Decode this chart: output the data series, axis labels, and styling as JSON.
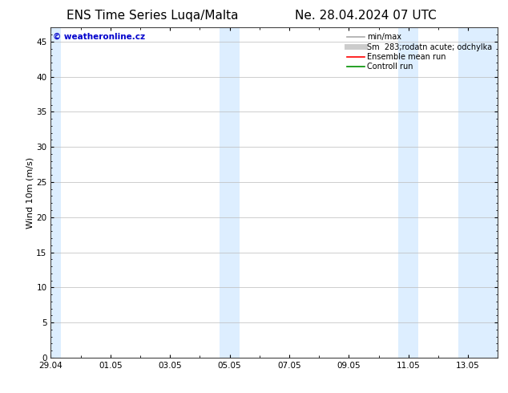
{
  "title_left": "ENS Time Series Luqa/Malta",
  "title_right": "Ne. 28.04.2024 07 UTC",
  "ylabel": "Wind 10m (m/s)",
  "ylim": [
    0,
    47
  ],
  "yticks": [
    0,
    5,
    10,
    15,
    20,
    25,
    30,
    35,
    40,
    45
  ],
  "xlim": [
    0,
    15
  ],
  "xtick_labels": [
    "29.04",
    "01.05",
    "03.05",
    "05.05",
    "07.05",
    "09.05",
    "11.05",
    "13.05"
  ],
  "xtick_positions": [
    0,
    2,
    4,
    6,
    8,
    10,
    12,
    14
  ],
  "background_color": "#ffffff",
  "plot_bg_color": "#ffffff",
  "shaded_bands": [
    {
      "x_start": 0.0,
      "x_end": 0.33,
      "color": "#ddeeff"
    },
    {
      "x_start": 5.67,
      "x_end": 6.33,
      "color": "#ddeeff"
    },
    {
      "x_start": 11.67,
      "x_end": 12.33,
      "color": "#ddeeff"
    },
    {
      "x_start": 13.67,
      "x_end": 15.0,
      "color": "#ddeeff"
    }
  ],
  "watermark_text": "© weatheronline.cz",
  "watermark_color": "#0000cc",
  "watermark_fontsize": 7.5,
  "legend_entries": [
    {
      "label": "min/max",
      "color": "#aaaaaa",
      "linewidth": 1.2,
      "linestyle": "-"
    },
    {
      "label": "Sm  283;rodatn acute; odchylka",
      "color": "#cccccc",
      "linewidth": 5,
      "linestyle": "-"
    },
    {
      "label": "Ensemble mean run",
      "color": "#ff0000",
      "linewidth": 1.2,
      "linestyle": "-"
    },
    {
      "label": "Controll run",
      "color": "#009000",
      "linewidth": 1.2,
      "linestyle": "-"
    }
  ],
  "title_fontsize": 11,
  "axis_fontsize": 8,
  "tick_fontsize": 7.5,
  "legend_fontsize": 7,
  "figsize": [
    6.34,
    4.9
  ],
  "dpi": 100
}
